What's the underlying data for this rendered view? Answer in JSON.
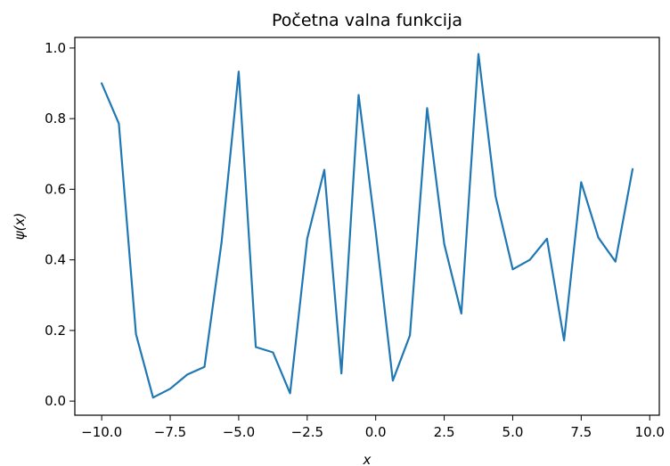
{
  "chart_data": {
    "type": "line",
    "title": "Početna valna funkcija",
    "xlabel": "x",
    "ylabel": "ψ(x)",
    "xlim": [
      -10.98,
      10.35
    ],
    "ylim": [
      -0.04,
      1.03
    ],
    "xticks": [
      -10.0,
      -7.5,
      -5.0,
      -2.5,
      0.0,
      2.5,
      5.0,
      7.5,
      10.0
    ],
    "xtick_labels": [
      "−10.0",
      "−7.5",
      "−5.0",
      "−2.5",
      "0.0",
      "2.5",
      "5.0",
      "7.5",
      "10.0"
    ],
    "yticks": [
      0.0,
      0.2,
      0.4,
      0.6,
      0.8,
      1.0
    ],
    "ytick_labels": [
      "0.0",
      "0.2",
      "0.4",
      "0.6",
      "0.8",
      "1.0"
    ],
    "grid": false,
    "series": [
      {
        "color": "#1f77b4",
        "x": [
          -10.0,
          -9.375,
          -8.75,
          -8.125,
          -7.5,
          -6.875,
          -6.25,
          -5.625,
          -5.0,
          -4.375,
          -3.75,
          -3.125,
          -2.5,
          -1.875,
          -1.25,
          -0.625,
          0.0,
          0.625,
          1.25,
          1.875,
          2.5,
          3.125,
          3.75,
          4.375,
          5.0,
          5.625,
          6.25,
          6.875,
          7.5,
          8.125,
          8.75,
          9.375
        ],
        "y": [
          0.9,
          0.786,
          0.19,
          0.01,
          0.035,
          0.075,
          0.097,
          0.45,
          0.933,
          0.153,
          0.138,
          0.022,
          0.46,
          0.655,
          0.078,
          0.867,
          0.48,
          0.058,
          0.186,
          0.83,
          0.445,
          0.248,
          0.983,
          0.58,
          0.373,
          0.4,
          0.46,
          0.172,
          0.62,
          0.463,
          0.395,
          0.657
        ]
      }
    ]
  }
}
